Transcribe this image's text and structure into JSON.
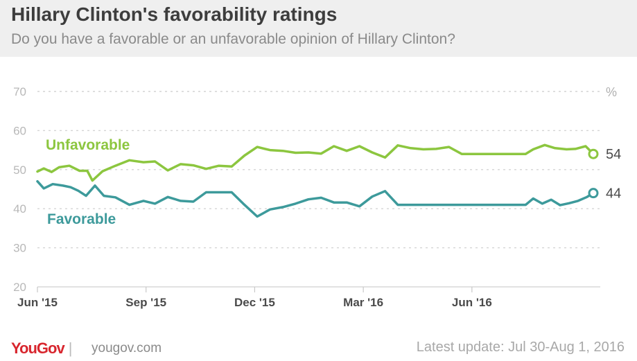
{
  "chart_data": {
    "type": "line",
    "title": "Hillary Clinton's favorability ratings",
    "subtitle": "Do you have a favorable or an unfavorable opinion of Hillary Clinton?",
    "unit": "%",
    "ylim": [
      20,
      70
    ],
    "yticks": [
      20,
      30,
      40,
      50,
      60,
      70
    ],
    "xticks": [
      "Jun '15",
      "Sep '15",
      "Dec '15",
      "Mar '16",
      "Jun '16"
    ],
    "series": [
      {
        "name": "Unfavorable",
        "color": "#8cc63f",
        "final_label": "54",
        "x": [
          0,
          0.5,
          1.1,
          1.7,
          2.5,
          3.3,
          3.9,
          4.3,
          5.1,
          6.1,
          7.2,
          8.3,
          9.2,
          10.2,
          11.2,
          12.2,
          13.2,
          14.2,
          15.2,
          16.2,
          17.2,
          18.2,
          19.2,
          20.2,
          21.2,
          22.2,
          23.2,
          24.2,
          25.2,
          26.2,
          27.2,
          28.2,
          29.2,
          30.2,
          31.2,
          32.2,
          33.2,
          34.2,
          35.2,
          36.2,
          37.2,
          38.2,
          38.8,
          39.7,
          40.5,
          41.4,
          42.1,
          42.9,
          43.5
        ],
        "y": [
          49.5,
          50.3,
          49.4,
          50.6,
          51.0,
          49.7,
          49.7,
          47.2,
          49.6,
          51.0,
          52.4,
          51.9,
          52.1,
          49.8,
          51.4,
          51.1,
          50.2,
          51.0,
          50.8,
          53.6,
          55.8,
          55.0,
          54.8,
          54.3,
          54.4,
          54.1,
          56.0,
          54.8,
          56.0,
          54.4,
          53.1,
          56.2,
          55.5,
          55.2,
          55.3,
          55.8,
          54.0,
          54.0,
          54.0,
          54.0,
          54.0,
          54.0,
          55.2,
          56.3,
          55.5,
          55.2,
          55.3,
          56.0,
          54.0
        ]
      },
      {
        "name": "Favorable",
        "color": "#3d9a9b",
        "final_label": "44",
        "x": [
          0,
          0.5,
          1.2,
          2.0,
          2.6,
          3.2,
          3.8,
          4.5,
          5.2,
          6.1,
          7.2,
          8.3,
          9.2,
          10.2,
          11.2,
          12.2,
          13.2,
          14.2,
          15.2,
          16.2,
          17.2,
          18.2,
          19.2,
          20.2,
          21.2,
          22.2,
          23.2,
          24.2,
          25.2,
          26.2,
          27.2,
          28.2,
          29.2,
          30.2,
          31.2,
          32.2,
          33.2,
          34.2,
          35.2,
          36.2,
          37.2,
          38.2,
          38.8,
          39.5,
          40.2,
          40.9,
          41.6,
          42.3,
          43.0,
          43.5
        ],
        "y": [
          47.0,
          45.2,
          46.3,
          45.9,
          45.5,
          44.6,
          43.3,
          45.9,
          43.3,
          42.9,
          41.0,
          42.0,
          41.3,
          43.0,
          42.0,
          41.8,
          44.2,
          44.2,
          44.2,
          41.0,
          38.0,
          39.8,
          40.4,
          41.3,
          42.4,
          42.8,
          41.6,
          41.6,
          40.6,
          43.1,
          44.5,
          41.0,
          41.0,
          41.0,
          41.0,
          41.0,
          41.0,
          41.0,
          41.0,
          41.0,
          41.0,
          41.0,
          42.6,
          41.3,
          42.3,
          40.9,
          41.4,
          42.0,
          43.0,
          44.0
        ]
      }
    ]
  },
  "footer": {
    "logo": "YouGov",
    "site": "yougov.com",
    "update": "Latest update: Jul 30-Aug 1, 2016"
  }
}
